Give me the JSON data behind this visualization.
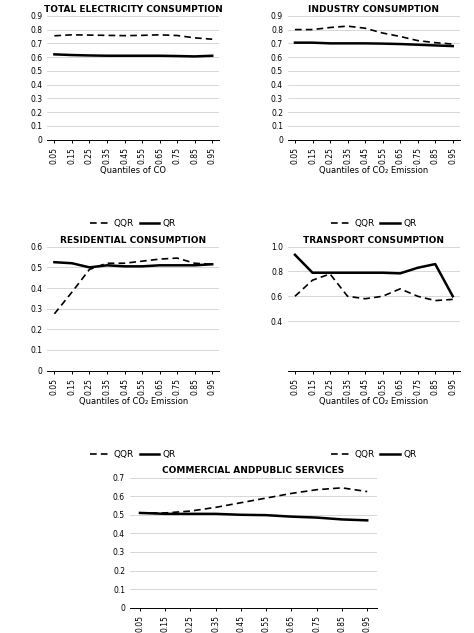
{
  "x": [
    0.05,
    0.15,
    0.25,
    0.35,
    0.45,
    0.55,
    0.65,
    0.75,
    0.85,
    0.95
  ],
  "x_labels": [
    "0.05",
    "0.15",
    "0.25",
    "0.35",
    "0.45",
    "0.55",
    "0.65",
    "0.75",
    "0.85",
    "0.95"
  ],
  "total_elec_qqr": [
    0.755,
    0.762,
    0.76,
    0.758,
    0.756,
    0.758,
    0.762,
    0.757,
    0.74,
    0.73
  ],
  "total_elec_qr": [
    0.62,
    0.615,
    0.612,
    0.61,
    0.61,
    0.61,
    0.61,
    0.608,
    0.605,
    0.61
  ],
  "total_elec_ylim": [
    0,
    0.9
  ],
  "total_elec_yticks": [
    0,
    0.1,
    0.2,
    0.3,
    0.4,
    0.5,
    0.6,
    0.7,
    0.8,
    0.9
  ],
  "total_elec_title": "TOTAL ELECTRICITY CONSUMPTION",
  "total_elec_xlabel": "Quantiles of CO",
  "industry_qqr": [
    0.8,
    0.8,
    0.815,
    0.825,
    0.81,
    0.775,
    0.75,
    0.72,
    0.705,
    0.695
  ],
  "industry_qr": [
    0.705,
    0.705,
    0.7,
    0.7,
    0.7,
    0.698,
    0.695,
    0.69,
    0.685,
    0.68
  ],
  "industry_ylim": [
    0,
    0.9
  ],
  "industry_yticks": [
    0,
    0.1,
    0.2,
    0.3,
    0.4,
    0.5,
    0.6,
    0.7,
    0.8,
    0.9
  ],
  "industry_title": "INDUSTRY CONSUMPTION",
  "industry_xlabel": "Quantiles of CO₂ Emission",
  "residential_qqr": [
    0.275,
    0.38,
    0.49,
    0.52,
    0.52,
    0.53,
    0.54,
    0.545,
    0.52,
    0.515
  ],
  "residential_qr": [
    0.525,
    0.52,
    0.5,
    0.51,
    0.505,
    0.505,
    0.51,
    0.51,
    0.51,
    0.515
  ],
  "residential_ylim": [
    0,
    0.6
  ],
  "residential_yticks": [
    0,
    0.1,
    0.2,
    0.3,
    0.4,
    0.5,
    0.6
  ],
  "residential_title": "RESIDENTIAL CONSUMPTION",
  "residential_xlabel": "Quantiles of CO₂ Emission",
  "transport_qqr": [
    0.6,
    0.73,
    0.78,
    0.6,
    0.58,
    0.6,
    0.66,
    0.6,
    0.565,
    0.575
  ],
  "transport_qr": [
    0.935,
    0.79,
    0.79,
    0.79,
    0.79,
    0.79,
    0.785,
    0.83,
    0.86,
    0.6
  ],
  "transport_ylim": [
    0,
    1.0
  ],
  "transport_yticks": [
    0.4,
    0.6,
    0.8,
    1.0
  ],
  "transport_title": "TRANSPORT CONSUMPTION",
  "transport_xlabel": "Quantiles of CO₂ Emission",
  "commercial_qqr": [
    0.51,
    0.51,
    0.52,
    0.54,
    0.565,
    0.59,
    0.615,
    0.635,
    0.645,
    0.625
  ],
  "commercial_qr": [
    0.51,
    0.505,
    0.505,
    0.505,
    0.5,
    0.498,
    0.49,
    0.485,
    0.475,
    0.47
  ],
  "commercial_ylim": [
    0,
    0.7
  ],
  "commercial_yticks": [
    0,
    0.1,
    0.2,
    0.3,
    0.4,
    0.5,
    0.6,
    0.7
  ],
  "commercial_title": "COMMERCIAL ANDPUBLIC SERVICES",
  "commercial_xlabel": "Quantiles of CO₂ Emission",
  "line_color": "#000000",
  "legend_qqr": "QQR",
  "legend_qr": "QR",
  "title_fontsize": 6.5,
  "tick_fontsize": 5.5,
  "label_fontsize": 6,
  "legend_fontsize": 6.5
}
